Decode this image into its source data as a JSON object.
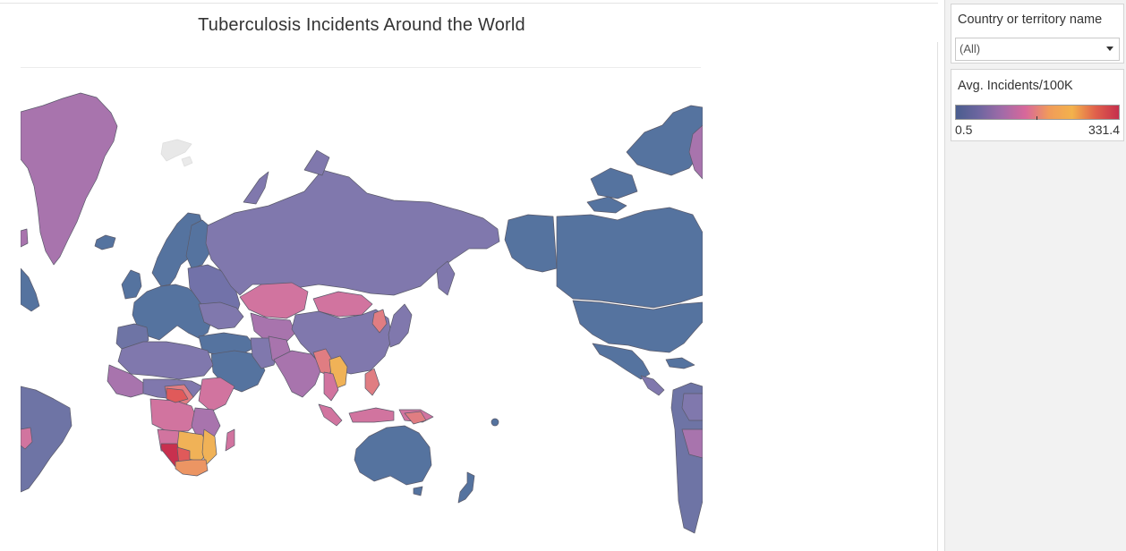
{
  "dashboard": {
    "title": "Tuberculosis Incidents Around the World"
  },
  "filter": {
    "title": "Country or territory name",
    "selected": "(All)",
    "arrow_icon": "dropdown-arrow-icon"
  },
  "legend": {
    "title": "Avg. Incidents/100K",
    "min_label": "0.5",
    "max_label": "331.4",
    "colors": [
      "#4a5d8e",
      "#6e66a0",
      "#a26ba8",
      "#d8689a",
      "#f09b5a",
      "#f3b24c",
      "#e0604c",
      "#c52f4c"
    ]
  },
  "map": {
    "colors": {
      "low": "#55739f",
      "low_mid": "#8078ad",
      "mid": "#a874ad",
      "pink": "#d1749f",
      "coral": "#e07d82",
      "orange": "#ec9563",
      "amber": "#f0b257",
      "red": "#e05a5a",
      "crimson": "#c8304e",
      "border": "#5a5a6a"
    }
  }
}
